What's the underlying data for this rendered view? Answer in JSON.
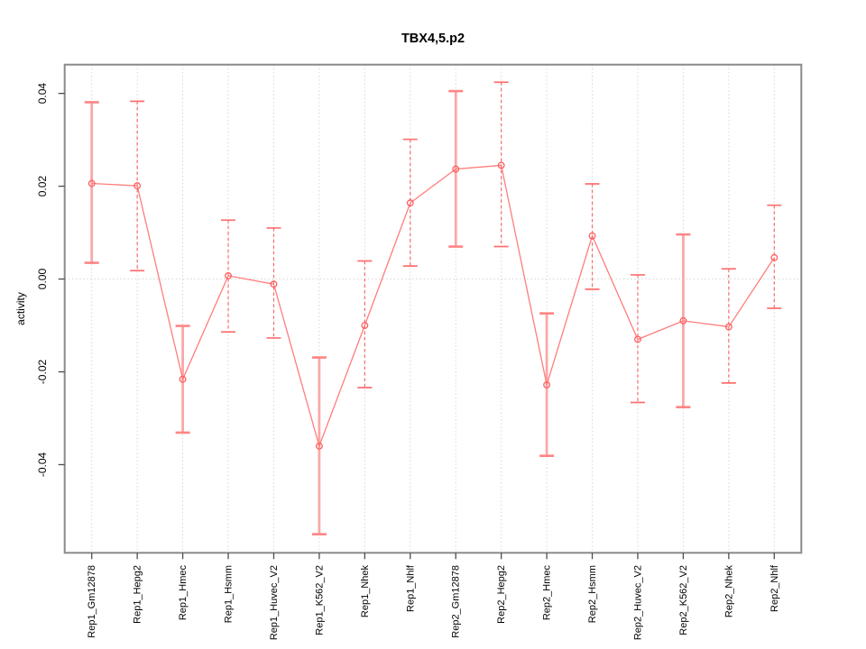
{
  "chart_data": {
    "type": "line",
    "subtype": "points-with-error-bars",
    "title": "TBX4,5.p2",
    "xlabel": "",
    "ylabel": "activity",
    "ylim": [
      -0.059,
      0.0462
    ],
    "yticks": [
      {
        "value": 0.04,
        "label": "0.04"
      },
      {
        "value": 0.02,
        "label": "0.02"
      },
      {
        "value": 0.0,
        "label": "0.00"
      },
      {
        "value": -0.02,
        "label": "-0.02"
      },
      {
        "value": -0.04,
        "label": "-0.04"
      }
    ],
    "grid": {
      "vertical_dotted_per_category": true,
      "horizontal_zero_line_dotted": true
    },
    "legend": "none",
    "categories": [
      "Rep1_Gm12878",
      "Rep1_Hepg2",
      "Rep1_Hmec",
      "Rep1_Hsmm",
      "Rep1_Huvec_V2",
      "Rep1_K562_V2",
      "Rep1_Nhek",
      "Rep1_Nhlf",
      "Rep2_Gm12878",
      "Rep2_Hepg2",
      "Rep2_Hmec",
      "Rep2_Hsmm",
      "Rep2_Huvec_V2",
      "Rep2_K562_V2",
      "Rep2_Nhek",
      "Rep2_Nhlf"
    ],
    "points": [
      {
        "value": 0.0206,
        "lower": 0.0035,
        "upper": 0.0381,
        "bar_style": "solid"
      },
      {
        "value": 0.0201,
        "lower": 0.0018,
        "upper": 0.0383,
        "bar_style": "dashed"
      },
      {
        "value": -0.0216,
        "lower": -0.0331,
        "upper": -0.0101,
        "bar_style": "solid"
      },
      {
        "value": 0.0007,
        "lower": -0.0114,
        "upper": 0.0127,
        "bar_style": "dashed"
      },
      {
        "value": -0.0011,
        "lower": -0.0127,
        "upper": 0.011,
        "bar_style": "dashed"
      },
      {
        "value": -0.036,
        "lower": -0.055,
        "upper": -0.0169,
        "bar_style": "solid"
      },
      {
        "value": -0.01,
        "lower": -0.0234,
        "upper": 0.0039,
        "bar_style": "dashed"
      },
      {
        "value": 0.0164,
        "lower": 0.0028,
        "upper": 0.0301,
        "bar_style": "dashed"
      },
      {
        "value": 0.0237,
        "lower": 0.007,
        "upper": 0.0405,
        "bar_style": "solid"
      },
      {
        "value": 0.0245,
        "lower": 0.007,
        "upper": 0.0424,
        "bar_style": "dashed"
      },
      {
        "value": -0.0228,
        "lower": -0.0381,
        "upper": -0.0074,
        "bar_style": "solid"
      },
      {
        "value": 0.0093,
        "lower": -0.0022,
        "upper": 0.0205,
        "bar_style": "dashed"
      },
      {
        "value": -0.013,
        "lower": -0.0266,
        "upper": 0.0009,
        "bar_style": "dashed"
      },
      {
        "value": -0.009,
        "lower": -0.0276,
        "upper": 0.0096,
        "bar_style": "solid"
      },
      {
        "value": -0.0103,
        "lower": -0.0224,
        "upper": 0.0022,
        "bar_style": "dashed"
      },
      {
        "value": 0.0046,
        "lower": -0.0063,
        "upper": 0.0159,
        "bar_style": "dashed"
      }
    ],
    "colors": {
      "point_stroke": "#ff6060",
      "connect_line": "#ff7d7d",
      "bar_solid": "#f9a8a8",
      "bar_dashed": "#f46c6c",
      "cap_solid": "#ff8585",
      "cap_dashed": "#ff6f6f",
      "grid": "#d6d6d6",
      "box": "#8a8a8a",
      "tick": "#4d4d4d",
      "text": "#000000"
    }
  }
}
